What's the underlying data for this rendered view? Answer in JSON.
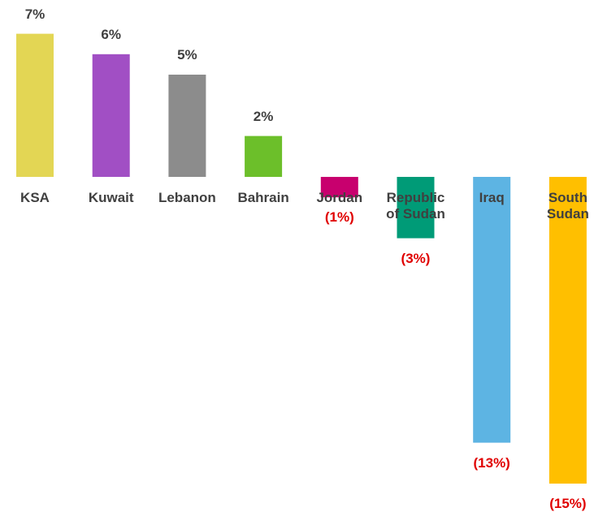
{
  "chart_data": {
    "type": "bar",
    "categories": [
      "KSA",
      "Kuwait",
      "Lebanon",
      "Bahrain",
      "Jordan",
      "Republic of Sudan",
      "Iraq",
      "South Sudan"
    ],
    "values": [
      7,
      6,
      5,
      2,
      -1,
      -3,
      -13,
      -15
    ],
    "value_labels": [
      "7%",
      "6%",
      "5%",
      "2%",
      "(1%)",
      "(3%)",
      "(13%)",
      "(15%)"
    ],
    "colors": [
      "#e3d654",
      "#a14fc4",
      "#8c8c8c",
      "#6cbf2a",
      "#c8006e",
      "#009b77",
      "#5db4e3",
      "#ffbf00"
    ],
    "positive_label_color": "#404040",
    "negative_label_color": "#e00000"
  }
}
